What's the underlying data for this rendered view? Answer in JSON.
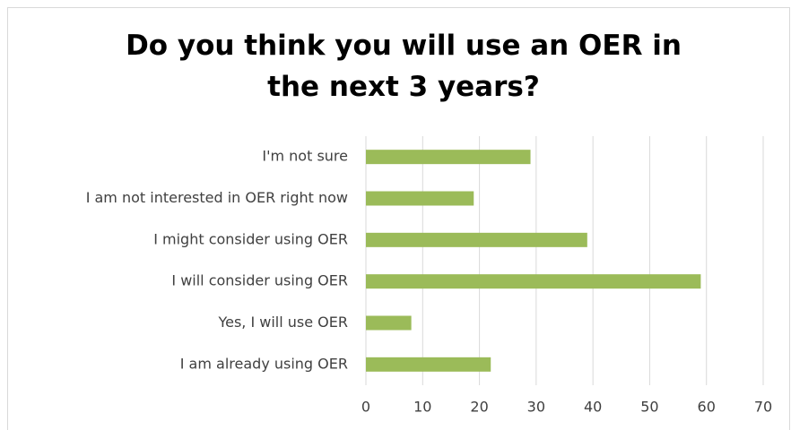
{
  "chart_data": {
    "type": "bar",
    "orientation": "horizontal",
    "title": "Do you think you will use an OER in the next 3 years?",
    "categories": [
      "I'm not sure",
      "I am not interested in OER right now",
      "I might consider using OER",
      "I will consider using OER",
      "Yes, I will use OER",
      "I am already using OER"
    ],
    "values": [
      29,
      19,
      39,
      59,
      8,
      22
    ],
    "color": "#9bbb59",
    "xlim": [
      0,
      70
    ],
    "xticks": [
      0,
      10,
      20,
      30,
      40,
      50,
      60,
      70
    ],
    "grid": true
  }
}
